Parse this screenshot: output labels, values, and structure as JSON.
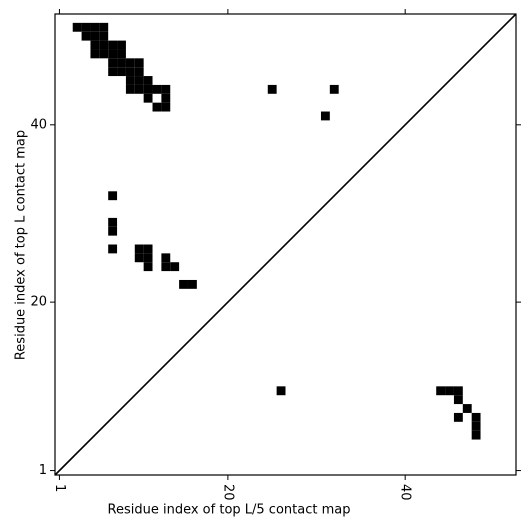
{
  "chart_data": {
    "type": "heatmap-cells",
    "xlabel": "Residue index of top L/5 contact map",
    "ylabel": "Residue index of top L contact map",
    "x": [
      3,
      4,
      5,
      6,
      4,
      5,
      6,
      5,
      6,
      7,
      8,
      5,
      6,
      7,
      8,
      7,
      8,
      9,
      10,
      7,
      8,
      9,
      10,
      9,
      10,
      11,
      9,
      10,
      11,
      12,
      13,
      25,
      32,
      11,
      13,
      12,
      13,
      31,
      7,
      7,
      7,
      7,
      10,
      11,
      10,
      11,
      13,
      11,
      13,
      14,
      15,
      16,
      26,
      44,
      45,
      46,
      46,
      47,
      46,
      48,
      48,
      48
    ],
    "y": [
      51,
      51,
      51,
      51,
      50,
      50,
      50,
      49,
      49,
      49,
      49,
      48,
      48,
      48,
      48,
      47,
      47,
      47,
      47,
      46,
      46,
      46,
      46,
      45,
      45,
      45,
      44,
      44,
      44,
      44,
      44,
      44,
      44,
      43,
      43,
      42,
      42,
      41,
      32,
      29,
      28,
      26,
      26,
      26,
      25,
      25,
      25,
      24,
      24,
      24,
      22,
      22,
      10,
      10,
      10,
      10,
      9,
      8,
      7,
      7,
      6,
      5
    ],
    "color": "#000000",
    "xlim": [
      0.5,
      52.5
    ],
    "ylim": [
      0.5,
      52.5
    ],
    "xticks": [
      1,
      20,
      40
    ],
    "yticks": [
      1,
      20,
      40
    ]
  }
}
